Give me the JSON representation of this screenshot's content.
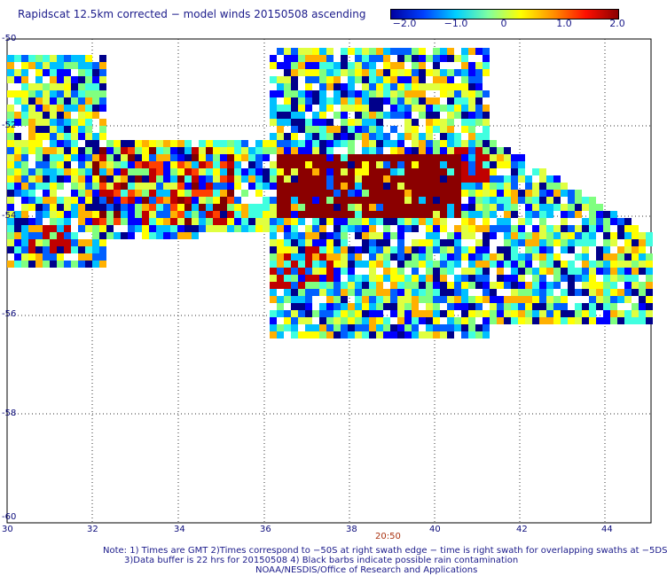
{
  "title": "Rapidscat 12.5km corrected − model winds 20150508 ascending",
  "colorbar": {
    "labels": [
      "−2.0",
      "−1.0",
      "0",
      "1.0",
      "2.0"
    ],
    "values": [
      -2,
      -1,
      0,
      1,
      2
    ],
    "colors": [
      "#0000a0",
      "#0040ff",
      "#00d0ff",
      "#80ffa0",
      "#ffff00",
      "#ff9000",
      "#ff1000",
      "#8b0000"
    ]
  },
  "axes": {
    "x_ticks": [
      "30",
      "32",
      "34",
      "36",
      "38",
      "40",
      "42",
      "44"
    ],
    "y_ticks": [
      "-50",
      "-52",
      "-54",
      "-56",
      "-58",
      "-60"
    ]
  },
  "time_label": "20:50",
  "notes": {
    "line1": "Note: 1) Times are GMT 2)Times correspond to −50S at right swath edge − time is right swath for overlapping swaths at −5DS",
    "line2": "3)Data buffer is 22 hrs for 20150508 4) Black barbs indicate possible rain contamination",
    "line3": "NOAA/NESDIS/Office of Research and Applications"
  }
}
